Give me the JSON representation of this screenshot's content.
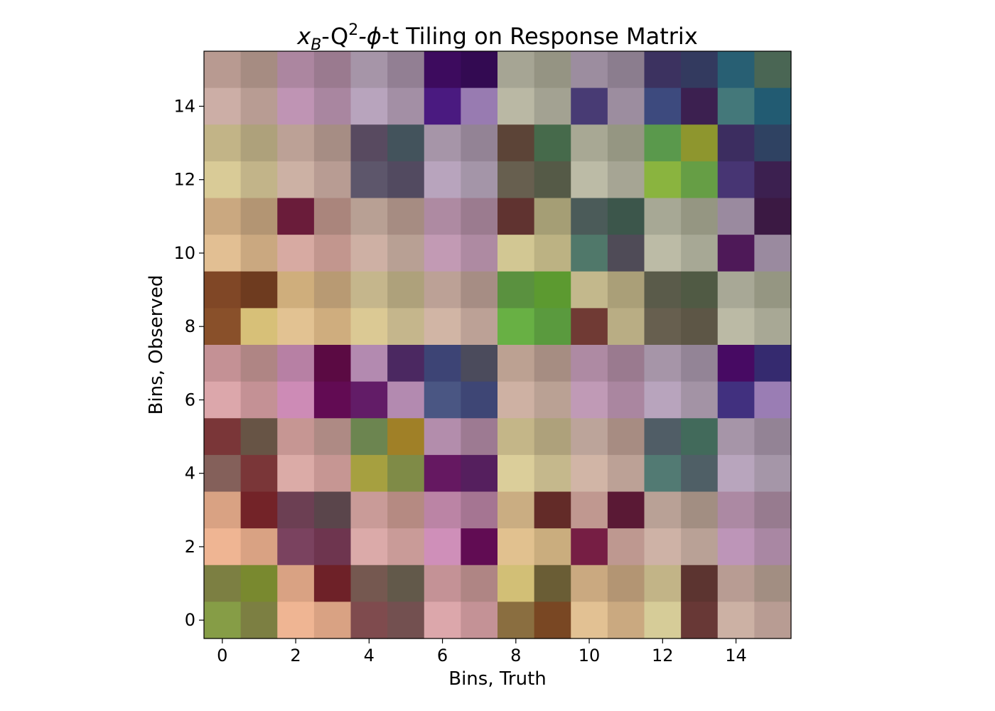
{
  "chart_data": {
    "type": "heatmap",
    "title": "x_B-Q²-φ-t Tiling on Response Matrix",
    "title_parts": {
      "xb_var": "x",
      "xb_sub": "B",
      "q_var": "-Q",
      "q_sup": "2",
      "phi": "-ϕ",
      "rest": "-t Tiling on Response Matrix"
    },
    "xlabel": "Bins, Truth",
    "ylabel": "Bins, Observed",
    "xlim": [
      -0.5,
      15.5
    ],
    "ylim": [
      -0.5,
      15.5
    ],
    "xticks": [
      0,
      2,
      4,
      6,
      8,
      10,
      12,
      14
    ],
    "yticks": [
      0,
      2,
      4,
      6,
      8,
      10,
      12,
      14
    ],
    "grid": false,
    "rows_top_to_bottom_colors": [
      [
        "#b89a91",
        "#a68c82",
        "#ac86a0",
        "#9a7a8f",
        "#a695a8",
        "#927f93",
        "#3d0b5e",
        "#330a52",
        "#a6a594",
        "#959483",
        "#9c8d9f",
        "#8b7d8e",
        "#3c3260",
        "#333a5f",
        "#285f73",
        "#4a6654"
      ],
      [
        "#ccaea6",
        "#b89c93",
        "#bf94b4",
        "#a986a0",
        "#b8a4bd",
        "#a38fa5",
        "#4a1a80",
        "#987bb1",
        "#bab8a4",
        "#a3a292",
        "#483b74",
        "#9c8d9f",
        "#3d4a7e",
        "#3c2050",
        "#44787a",
        "#225b72"
      ],
      [
        "#c2b487",
        "#aea17b",
        "#bca196",
        "#a68d84",
        "#584a60",
        "#43535c",
        "#a695a8",
        "#938395",
        "#5c4437",
        "#466a4b",
        "#a8a894",
        "#959682",
        "#5a994c",
        "#8e962e",
        "#3c2d60",
        "#2f4262"
      ],
      [
        "#d9cb97",
        "#c2b489",
        "#ccb1a4",
        "#b89c93",
        "#5d566b",
        "#524a60",
        "#b8a4bd",
        "#a495a8",
        "#675f4f",
        "#555a47",
        "#bcbba6",
        "#a6a594",
        "#8ab43f",
        "#669e45",
        "#473573",
        "#3c2050"
      ],
      [
        "#caa880",
        "#b39573",
        "#6a1c3a",
        "#aa857c",
        "#b8a094",
        "#a68c82",
        "#ae8aa2",
        "#9b7b8f",
        "#603330",
        "#a59e75",
        "#4b5b59",
        "#3c564b",
        "#a7a895",
        "#959682",
        "#9a8a9f",
        "#3b1943"
      ],
      [
        "#e2bf93",
        "#caa880",
        "#d7aaa2",
        "#c2968e",
        "#ceb0a4",
        "#b8a094",
        "#c29ab4",
        "#ae8aa2",
        "#d2c793",
        "#bcb283",
        "#50786a",
        "#4f4b57",
        "#bcbba6",
        "#a7a895",
        "#4e1958",
        "#9a8a9f"
      ],
      [
        "#804726",
        "#6e3b1f",
        "#cfae7c",
        "#b89a73",
        "#c5b68c",
        "#aea17b",
        "#bca196",
        "#a68d84",
        "#5a913f",
        "#5c9a30",
        "#c3b88c",
        "#aa9f78",
        "#5a5b4a",
        "#505a44",
        "#a8a896",
        "#959682"
      ],
      [
        "#89502a",
        "#d7c078",
        "#e2c292",
        "#cfad7e",
        "#dbc994",
        "#c5b68c",
        "#d1b5a5",
        "#bca196",
        "#68b044",
        "#5a9a3e",
        "#703a34",
        "#b9ad84",
        "#675f4f",
        "#5d5646",
        "#bbbaa5",
        "#a8a895"
      ],
      [
        "#c49195",
        "#af8584",
        "#b780a4",
        "#5b0a43",
        "#b38ab0",
        "#4b2861",
        "#3d4475",
        "#4b4b5c",
        "#bca192",
        "#a68d82",
        "#ae8aa3",
        "#9a7a8f",
        "#a695a8",
        "#938496",
        "#470a63",
        "#352a6f"
      ],
      [
        "#dca7ab",
        "#c49195",
        "#cd8bb6",
        "#620b53",
        "#621c67",
        "#b38ab0",
        "#4a5683",
        "#3e4675",
        "#ceb1a3",
        "#baa194",
        "#c09ab6",
        "#aa86a0",
        "#b8a4bd",
        "#a393a5",
        "#41307f",
        "#9a7db4"
      ],
      [
        "#7a3638",
        "#675445",
        "#c69693",
        "#ae8a84",
        "#6c8550",
        "#a08027",
        "#b38dac",
        "#9d7a92",
        "#c4b688",
        "#aea17b",
        "#bca49a",
        "#a78c82",
        "#505d66",
        "#426a5b",
        "#a695a8",
        "#938395"
      ],
      [
        "#84605a",
        "#7a3638",
        "#dbaba7",
        "#c69693",
        "#a6a040",
        "#7f8b47",
        "#651861",
        "#551f5e",
        "#dbce9a",
        "#c5b88c",
        "#d1b5a6",
        "#bca196",
        "#527a73",
        "#4f5f66",
        "#b8a5bd",
        "#a596a8"
      ],
      [
        "#d9a283",
        "#732328",
        "#6c3f53",
        "#5a454b",
        "#c99b98",
        "#b58a82",
        "#bb84a5",
        "#a57592",
        "#caad82",
        "#632b28",
        "#c09890",
        "#5a1935",
        "#b9a196",
        "#a28e82",
        "#ac89a3",
        "#977b8f"
      ],
      [
        "#efb593",
        "#d9a283",
        "#7a425f",
        "#6e354f",
        "#dbaaa9",
        "#c99b98",
        "#cf8fb9",
        "#610c53",
        "#e1c18f",
        "#caad7e",
        "#761e44",
        "#be9890",
        "#ceb2a6",
        "#b9a196",
        "#bd95b8",
        "#a987a3"
      ],
      [
        "#7c7f42",
        "#79892f",
        "#d9a283",
        "#6e2128",
        "#755850",
        "#62594a",
        "#c49296",
        "#af8584",
        "#d2bf76",
        "#6a5d35",
        "#caa980",
        "#b39573",
        "#c2b487",
        "#5c3430",
        "#b89c93",
        "#a28e82"
      ],
      [
        "#869d46",
        "#7c7f42",
        "#efb593",
        "#d9a283",
        "#7f4b4e",
        "#735050",
        "#dca7ab",
        "#c49296",
        "#8a6e40",
        "#794723",
        "#e2c193",
        "#caa980",
        "#d6cc98",
        "#683836",
        "#ccb1a4",
        "#b89c93"
      ]
    ]
  }
}
